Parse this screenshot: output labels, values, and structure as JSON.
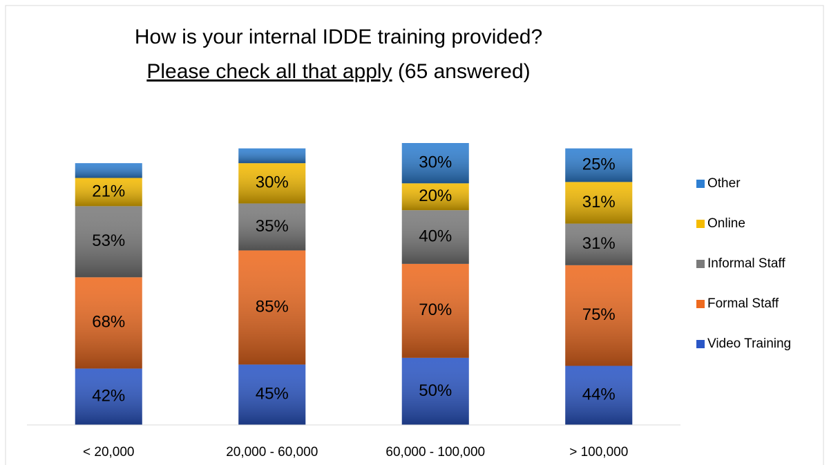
{
  "chart_data": {
    "type": "stacked-bar",
    "title": "How is your internal IDDE training provided?",
    "subtitle": "Please check all that apply",
    "note": "(65 answered)",
    "categories": [
      "< 20,000",
      "20,000 - 60,000",
      "60,000 - 100,000",
      "> 100,000"
    ],
    "series": [
      {
        "name": "Video Training",
        "color": "#2a56c6",
        "values": [
          42,
          45,
          50,
          44
        ],
        "value_labels": [
          "42%",
          "45%",
          "50%",
          "44%"
        ]
      },
      {
        "name": "Formal Staff",
        "color": "#ee6a1f",
        "values": [
          68,
          85,
          70,
          75
        ],
        "value_labels": [
          "68%",
          "85%",
          "70%",
          "75%"
        ]
      },
      {
        "name": "Informal Staff",
        "color": "#7a7a7a",
        "values": [
          53,
          35,
          40,
          31
        ],
        "value_labels": [
          "53%",
          "35%",
          "40%",
          "31%"
        ]
      },
      {
        "name": "Online",
        "color": "#f5bb00",
        "values": [
          21,
          30,
          20,
          31
        ],
        "value_labels": [
          "21%",
          "30%",
          "20%",
          "31%"
        ]
      },
      {
        "name": "Other",
        "color": "#2e7fd2",
        "values": [
          11,
          11,
          30,
          25
        ],
        "value_labels": [
          null,
          null,
          "30%",
          "25%"
        ]
      }
    ],
    "legend": "right"
  }
}
